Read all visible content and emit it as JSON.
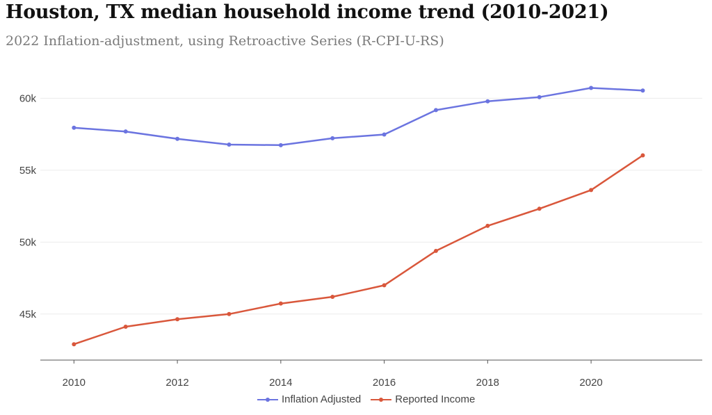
{
  "chart_data": {
    "type": "line",
    "title": "Houston, TX median household income trend (2010-2021)",
    "subtitle": "2022 Inflation-adjustment, using Retroactive Series (R-CPI-U-RS)",
    "x": [
      2010,
      2011,
      2012,
      2013,
      2014,
      2015,
      2016,
      2017,
      2018,
      2019,
      2020,
      2021
    ],
    "x_ticks": [
      2010,
      2012,
      2014,
      2016,
      2018,
      2020
    ],
    "x_tick_labels": [
      "2010",
      "2012",
      "2014",
      "2016",
      "2018",
      "2020"
    ],
    "xlim": [
      2009.35,
      2022.15
    ],
    "y_ticks": [
      45000,
      50000,
      55000,
      60000
    ],
    "y_tick_labels": [
      "45k",
      "50k",
      "55k",
      "60k"
    ],
    "ylim": [
      41800,
      62000
    ],
    "grid": true,
    "legend_position": "bottom-center",
    "series": [
      {
        "name": "Inflation Adjusted",
        "color": "#6b74e0",
        "values": [
          57950,
          57690,
          57180,
          56780,
          56740,
          57220,
          57480,
          59180,
          59790,
          60080,
          60720,
          60540
        ]
      },
      {
        "name": "Reported Income",
        "color": "#d9573b",
        "values": [
          42900,
          44120,
          44640,
          45000,
          45730,
          46200,
          47000,
          49390,
          51130,
          52320,
          53620,
          56030
        ]
      }
    ]
  }
}
